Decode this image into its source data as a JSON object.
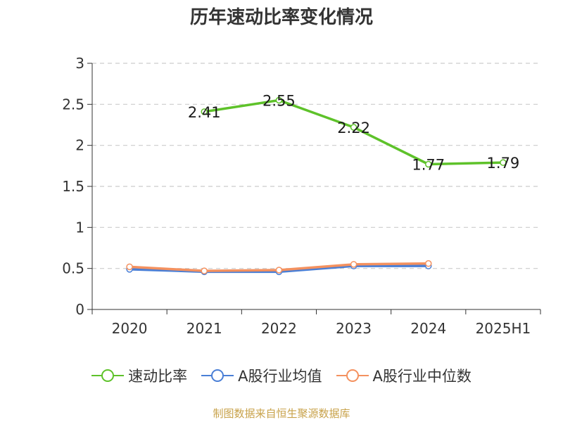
{
  "title": "历年速动比率变化情况",
  "source": "制图数据来自恒生聚源数据库",
  "chart_data": {
    "type": "line",
    "title": "历年速动比率变化情况",
    "categories": [
      "2020",
      "2021",
      "2022",
      "2023",
      "2024",
      "2025H1"
    ],
    "ylim": [
      0,
      3
    ],
    "yticks": [
      "0",
      "0.5",
      "1",
      "1.5",
      "2",
      "2.5",
      "3"
    ],
    "grid": true,
    "legend_position": "bottom",
    "series": [
      {
        "name": "速动比率",
        "color": "#5ec22a",
        "values": [
          null,
          2.41,
          2.55,
          2.22,
          1.77,
          1.79
        ],
        "labels": [
          "",
          "2.41",
          "2.55",
          "2.22",
          "1.77",
          "1.79"
        ]
      },
      {
        "name": "A股行业均值",
        "color": "#4a7fd6",
        "values": [
          0.49,
          0.46,
          0.46,
          0.53,
          0.53,
          null
        ]
      },
      {
        "name": "A股行业中位数",
        "color": "#f4915f",
        "values": [
          0.52,
          0.47,
          0.48,
          0.55,
          0.56,
          null
        ]
      }
    ]
  }
}
